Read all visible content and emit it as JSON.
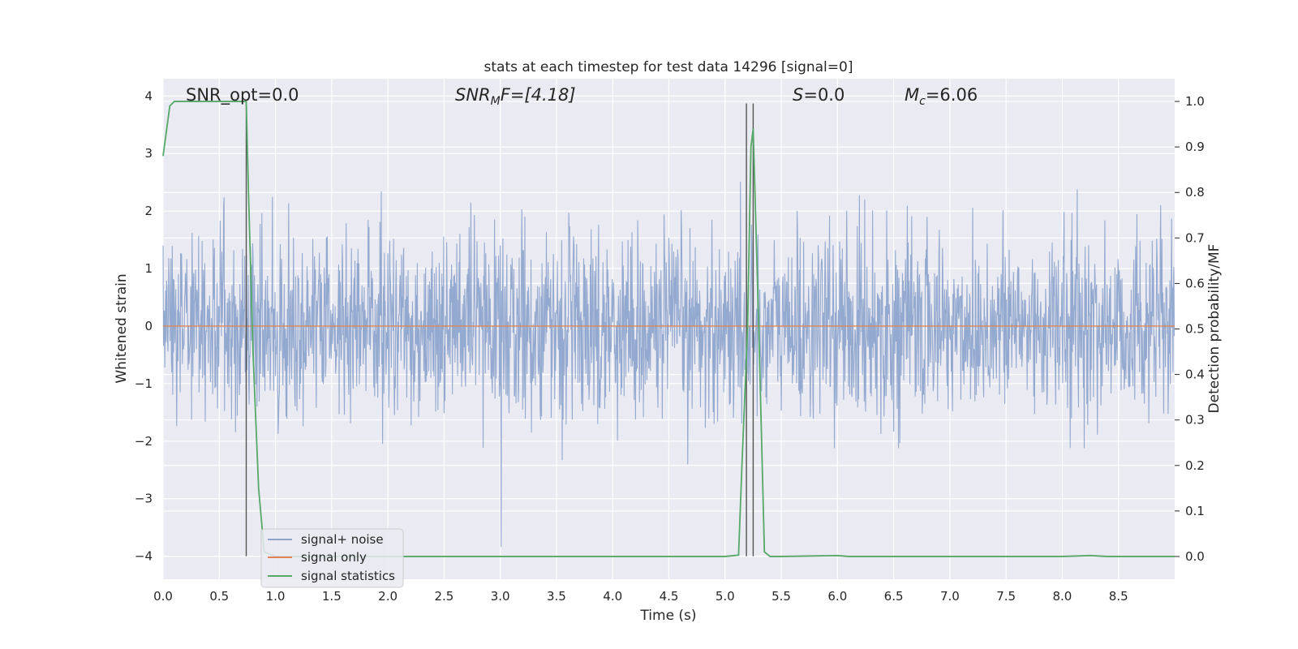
{
  "chart_data": {
    "type": "line",
    "title": "stats at each timestep for test data 14296 [signal=0]",
    "xlabel": "Time (s)",
    "ylabel_left": "Whitened strain",
    "ylabel_right": "Detection probability/MF",
    "xlim": [
      0.0,
      9.0
    ],
    "ylim_left": [
      -4.4,
      4.3
    ],
    "ylim_right": [
      -0.05,
      1.05
    ],
    "x_ticks": [
      "0.0",
      "0.5",
      "1.0",
      "1.5",
      "2.0",
      "2.5",
      "3.0",
      "3.5",
      "4.0",
      "4.5",
      "5.0",
      "5.5",
      "6.0",
      "6.5",
      "7.0",
      "7.5",
      "8.0",
      "8.5"
    ],
    "y_ticks_left": [
      "4",
      "3",
      "2",
      "1",
      "0",
      "−1",
      "−2",
      "−3",
      "−4"
    ],
    "y_ticks_right": [
      "1.0",
      "0.9",
      "0.8",
      "0.7",
      "0.6",
      "0.5",
      "0.4",
      "0.3",
      "0.2",
      "0.1",
      "0.0"
    ],
    "grid": true,
    "legend_position": "lower-left",
    "annotations": {
      "snr_opt": "SNR_opt=0.0",
      "snr_mf_main": "SNR",
      "snr_mf_sub": "M",
      "snr_mf_rest": "F=[4.18]",
      "s_main": "S",
      "s_rest": "=0.0",
      "mc_main": "M",
      "mc_sub": "c",
      "mc_rest": "=6.06"
    },
    "vertical_lines_x": [
      0.74,
      5.19,
      5.25
    ],
    "series": [
      {
        "name": "signal+ noise",
        "axis": "left",
        "color": "#8fa5cc",
        "description_stat": {
          "mean": 0.0,
          "std": 0.8,
          "sample_rate_hz": 256
        }
      },
      {
        "name": "signal only",
        "axis": "left",
        "color": "#dd8452",
        "x": [
          0.0,
          9.0
        ],
        "y": [
          0.0,
          0.0
        ]
      },
      {
        "name": "signal statistics",
        "axis": "right",
        "color": "#55a868",
        "x": [
          0.0,
          0.06,
          0.1,
          0.2,
          0.3,
          0.5,
          0.7,
          0.74,
          0.76,
          0.8,
          0.85,
          0.9,
          1.0,
          2.0,
          3.0,
          4.0,
          5.0,
          5.12,
          5.15,
          5.2,
          5.23,
          5.25,
          5.3,
          5.35,
          5.4,
          5.5,
          6.0,
          6.1,
          7.0,
          8.0,
          8.25,
          8.4,
          9.0
        ],
        "y": [
          0.88,
          0.99,
          1.0,
          1.0,
          1.0,
          1.0,
          1.0,
          1.0,
          0.8,
          0.45,
          0.15,
          0.01,
          0.0,
          0.0,
          0.0,
          0.0,
          0.0,
          0.003,
          0.2,
          0.5,
          0.9,
          0.94,
          0.5,
          0.01,
          0.0,
          0.0,
          0.002,
          0.0,
          0.0,
          0.0,
          0.002,
          0.0,
          0.0
        ]
      }
    ]
  }
}
